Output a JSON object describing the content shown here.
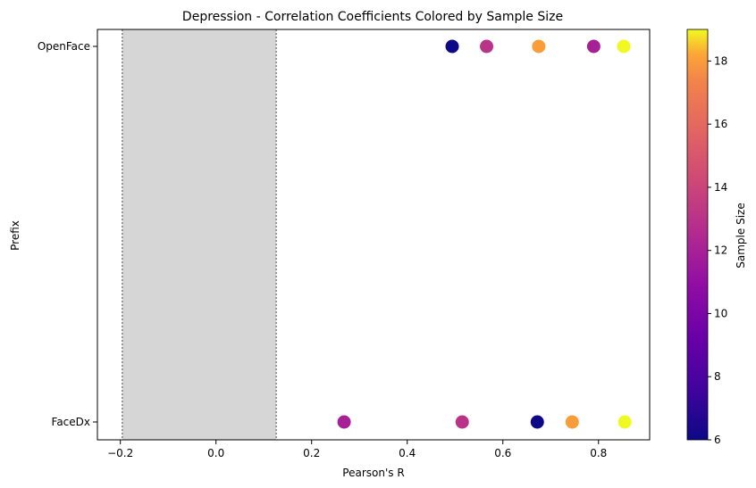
{
  "chart_data": {
    "type": "scatter",
    "title": "Depression - Correlation Coefficients Colored by Sample Size",
    "xlabel": "Pearson's R",
    "ylabel": "Prefix",
    "categories": [
      "FaceDx",
      "OpenFace"
    ],
    "xlim": [
      -0.248,
      0.907
    ],
    "xticks": [
      -0.2,
      0.0,
      0.2,
      0.4,
      0.6,
      0.8
    ],
    "xtick_labels": [
      "−0.2",
      "0.0",
      "0.2",
      "0.4",
      "0.6",
      "0.8"
    ],
    "shaded_region": {
      "x0": -0.196,
      "x1": 0.126,
      "color": "#d6d6d6",
      "edge_style": "dotted"
    },
    "points": [
      {
        "category": "OpenFace",
        "x": 0.494,
        "sample_size": 6
      },
      {
        "category": "OpenFace",
        "x": 0.566,
        "sample_size": 13
      },
      {
        "category": "OpenFace",
        "x": 0.675,
        "sample_size": 18
      },
      {
        "category": "OpenFace",
        "x": 0.79,
        "sample_size": 12
      },
      {
        "category": "OpenFace",
        "x": 0.853,
        "sample_size": 19
      },
      {
        "category": "FaceDx",
        "x": 0.268,
        "sample_size": 12
      },
      {
        "category": "FaceDx",
        "x": 0.515,
        "sample_size": 13
      },
      {
        "category": "FaceDx",
        "x": 0.672,
        "sample_size": 6
      },
      {
        "category": "FaceDx",
        "x": 0.745,
        "sample_size": 18
      },
      {
        "category": "FaceDx",
        "x": 0.855,
        "sample_size": 19
      }
    ],
    "colorbar": {
      "label": "Sample Size",
      "range": [
        6,
        19
      ],
      "ticks": [
        6,
        8,
        10,
        12,
        14,
        16,
        18
      ],
      "tick_labels": [
        "6",
        "8",
        "10",
        "12",
        "14",
        "16",
        "18"
      ],
      "colormap": "plasma"
    },
    "grid": false
  }
}
